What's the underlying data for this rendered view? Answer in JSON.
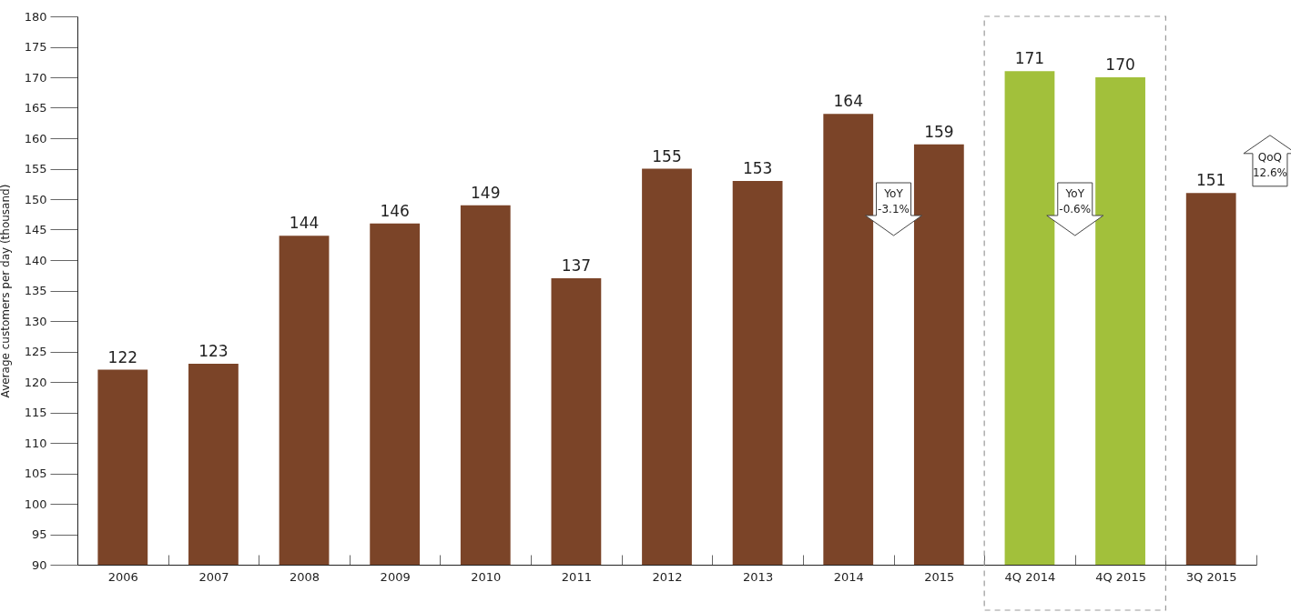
{
  "chart_data": {
    "type": "bar",
    "ylabel": "Average customers per day (thousand)",
    "categories": [
      "2006",
      "2007",
      "2008",
      "2009",
      "2010",
      "2011",
      "2012",
      "2013",
      "2014",
      "2015",
      "4Q 2014",
      "4Q 2015",
      "3Q 2015"
    ],
    "values": [
      122,
      123,
      144,
      146,
      149,
      137,
      155,
      153,
      164,
      159,
      171,
      170,
      151
    ],
    "colors": [
      "#7b4428",
      "#7b4428",
      "#7b4428",
      "#7b4428",
      "#7b4428",
      "#7b4428",
      "#7b4428",
      "#7b4428",
      "#7b4428",
      "#7b4428",
      "#a2c03b",
      "#a2c03b",
      "#7b4428"
    ],
    "ylim": [
      90,
      180
    ],
    "yticks": [
      90,
      95,
      100,
      105,
      110,
      115,
      120,
      125,
      130,
      135,
      140,
      145,
      150,
      155,
      160,
      165,
      170,
      175,
      180
    ],
    "data_labels": true,
    "grid": false,
    "annotations": [
      "YoY -3.1%",
      "YoY -0.6%",
      "QoQ 12.6%"
    ]
  }
}
